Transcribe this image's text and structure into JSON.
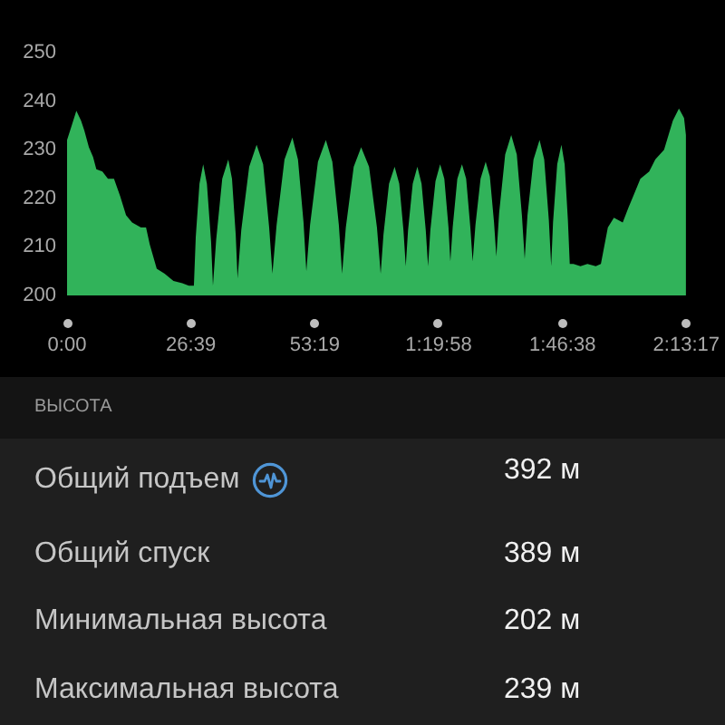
{
  "chart_data": {
    "type": "area",
    "x": [
      0,
      1,
      2,
      3,
      3.7,
      4.7,
      5.6,
      6.3,
      7.6,
      8.8,
      10.1,
      11.4,
      12.7,
      14,
      15.9,
      17,
      17.8,
      19.3,
      21,
      22.9,
      24.8,
      26.2,
      27.3,
      27.7,
      28.5,
      29.3,
      30.1,
      31.0,
      31.4,
      32.1,
      33.4,
      34.7,
      35.5,
      36.3,
      36.7,
      37.5,
      39.2,
      40.8,
      42.2,
      43.5,
      44.2,
      45.1,
      46.8,
      48.5,
      49.7,
      50.9,
      51.5,
      52.3,
      54,
      55.7,
      57.1,
      58.5,
      59.2,
      60,
      61.7,
      63.3,
      65,
      66.7,
      67.5,
      68.1,
      69.3,
      70.5,
      71.5,
      72.4,
      72.9,
      73.4,
      74.4,
      75.4,
      76.3,
      77.2,
      77.7,
      78.2,
      79.3,
      80.3,
      81.2,
      82.1,
      82.5,
      83,
      84,
      85,
      85.9,
      86.8,
      87.3,
      87.9,
      89,
      90.1,
      91,
      91.9,
      92.4,
      93,
      94.3,
      95.6,
      96.8,
      97.9,
      98.5,
      99.1,
      100.4,
      101.7,
      102.7,
      103.7,
      104.2,
      104.6,
      105.5,
      106.4,
      107.1,
      107.8,
      108.2,
      109,
      110.5,
      112,
      113.8,
      114.9,
      116.4,
      117.7,
      119.6,
      120.8,
      122.1,
      123.4,
      125.3,
      126.6,
      128.5,
      130.4,
      131.7,
      132.8,
      133.2
    ],
    "values": [
      232,
      235,
      238,
      236,
      234,
      230.5,
      228.5,
      226,
      225.5,
      224,
      224,
      220.5,
      216.5,
      215,
      214,
      214,
      210.5,
      205.5,
      204.5,
      203,
      202.5,
      202,
      202,
      212,
      223,
      227,
      223,
      211,
      202,
      211.5,
      224,
      228,
      224,
      212.5,
      203.5,
      213.5,
      226.5,
      231,
      227,
      214,
      204.5,
      214.5,
      228,
      232.5,
      228,
      215,
      205,
      214.5,
      227.5,
      232,
      227.5,
      214.5,
      204.5,
      214,
      226.5,
      230.5,
      226.5,
      214,
      204.5,
      212.5,
      223,
      226.5,
      223,
      213.5,
      206,
      213.5,
      223,
      226.5,
      223,
      213.5,
      206,
      213.5,
      223.5,
      227,
      224,
      214,
      207,
      214,
      224,
      227,
      224,
      214,
      207,
      214.5,
      224,
      227.5,
      224.5,
      215,
      208,
      217,
      229,
      233,
      229,
      216.5,
      207.5,
      216.5,
      228,
      232,
      228,
      215.5,
      206,
      215,
      227,
      231,
      227,
      215.5,
      206.5,
      206.5,
      206,
      206.5,
      206,
      206.5,
      214,
      216,
      215,
      218,
      221,
      224,
      225.5,
      228,
      230,
      236,
      238.5,
      236.5,
      233
    ],
    "color": "#31b35a",
    "xlim": [
      0,
      133.283
    ],
    "xticks": [
      {
        "value": 0,
        "label": "0:00"
      },
      {
        "value": 26.65,
        "label": "26:39"
      },
      {
        "value": 53.317,
        "label": "53:19"
      },
      {
        "value": 79.967,
        "label": "1:19:58"
      },
      {
        "value": 106.633,
        "label": "1:46:38"
      },
      {
        "value": 133.283,
        "label": "2:13:17"
      }
    ],
    "ylim": [
      200,
      250
    ],
    "yticks": [
      200,
      210,
      220,
      230,
      240,
      250
    ],
    "grid": false,
    "marker": "none",
    "annotations": [
      "ВЫСОТА",
      "Общий подъем",
      "392 м",
      "Общий спуск",
      "389 м",
      "Минимальная высота",
      "202 м",
      "Максимальная высота",
      "239 м"
    ]
  }
}
